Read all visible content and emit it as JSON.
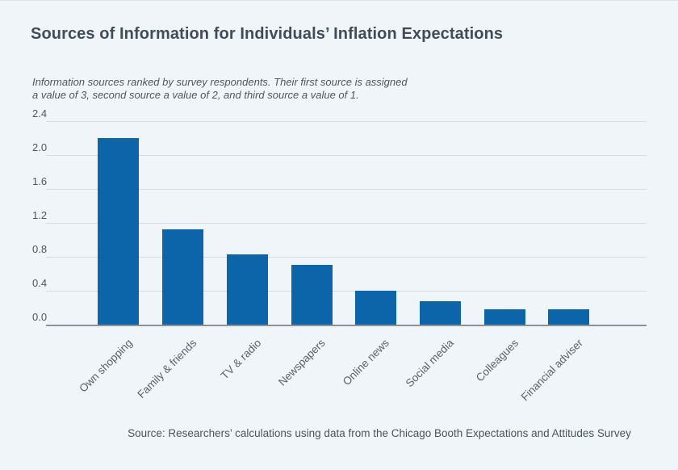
{
  "page": {
    "title": "Sources of Information for Individuals’ Inflation Expectations",
    "subtitle_line1": "Information sources ranked by survey respondents. Their first source is assigned",
    "subtitle_line2": "a value of 3, second source a value of 2, and third source a value of 1.",
    "source_note": "Source: Researchers’ calculations using data from the Chicago Booth Expectations and Attitudes Survey"
  },
  "colors": {
    "background": "#f0f5fa",
    "bar": "#0c65a8",
    "gridline": "#d5dbe1",
    "axis_line": "#8b9198",
    "title_text": "#414c56",
    "muted_text": "#4e565e"
  },
  "chart_data": {
    "type": "bar",
    "title": "Sources of Information for Individuals’ Inflation Expectations",
    "subtitle": "Information sources ranked by survey respondents. Their first source is assigned a value of 3, second source a value of 2, and third source a value of 1.",
    "categories": [
      "Own shopping",
      "Family & friends",
      "TV & radio",
      "Newspapers",
      "Online news",
      "Social media",
      "Colleagues",
      "Financial adviser"
    ],
    "values": [
      2.2,
      1.12,
      0.83,
      0.7,
      0.4,
      0.28,
      0.18,
      0.18
    ],
    "xlabel": "",
    "ylabel": "",
    "ylim": [
      0,
      2.4
    ],
    "yticks": [
      0.0,
      0.4,
      0.8,
      1.2,
      1.6,
      2.0,
      2.4
    ],
    "grid": true,
    "legend": false,
    "x_tick_rotation_deg": 45,
    "source": "Source: Researchers’ calculations using data from the Chicago Booth Expectations and Attitudes Survey"
  }
}
